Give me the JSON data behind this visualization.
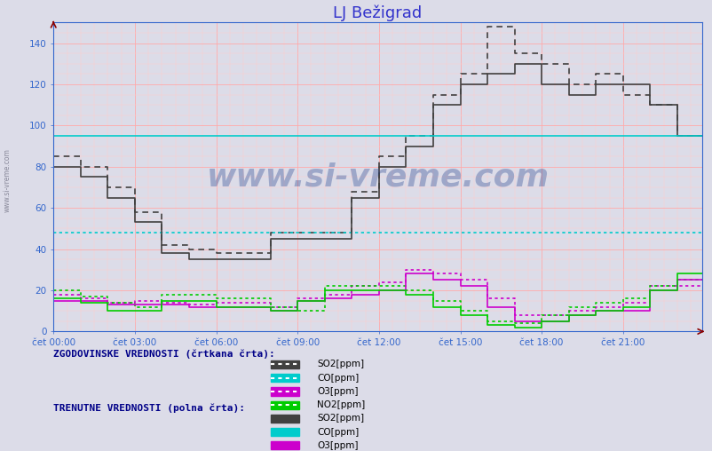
{
  "title": "LJ Bežigrad",
  "background_color": "#dcdce8",
  "plot_bg_color": "#dcdce8",
  "ylim": [
    0,
    150
  ],
  "yticks": [
    0,
    20,
    40,
    60,
    80,
    100,
    120,
    140
  ],
  "xtick_positions": [
    0,
    36,
    72,
    108,
    144,
    180,
    216,
    252
  ],
  "xtick_labels": [
    "čet 00:00",
    "čet 03:00",
    "čet 06:00",
    "čet 09:00",
    "čet 12:00",
    "čet 15:00",
    "čet 18:00",
    "čet 21:00"
  ],
  "colors": {
    "SO2": "#404040",
    "CO": "#00cccc",
    "O3": "#cc00cc",
    "NO2": "#00cc00"
  },
  "grid_color_major": "#ffaaaa",
  "grid_color_minor": "#ffcccc",
  "title_color": "#3333cc",
  "axis_color": "#3366cc",
  "label_text1": "ZGODOVINSKE VREDNOSTI (črtkana črta):",
  "label_text2": "TRENUTNE VREDNOSTI (polna črta):",
  "legend_items": [
    "SO2[ppm]",
    "CO[ppm]",
    "O3[ppm]",
    "NO2[ppm]"
  ],
  "n_points": 288,
  "SO2_solid": [
    80,
    80,
    80,
    80,
    80,
    80,
    80,
    80,
    80,
    80,
    80,
    80,
    75,
    75,
    75,
    75,
    75,
    75,
    75,
    75,
    75,
    75,
    75,
    75,
    65,
    65,
    65,
    65,
    65,
    65,
    65,
    65,
    65,
    65,
    65,
    65,
    53,
    53,
    53,
    53,
    53,
    53,
    53,
    53,
    53,
    53,
    53,
    53,
    38,
    38,
    38,
    38,
    38,
    38,
    38,
    38,
    38,
    38,
    38,
    38,
    35,
    35,
    35,
    35,
    35,
    35,
    35,
    35,
    35,
    35,
    35,
    35,
    35,
    35,
    35,
    35,
    35,
    35,
    35,
    35,
    35,
    35,
    35,
    35,
    35,
    35,
    35,
    35,
    35,
    35,
    35,
    35,
    35,
    35,
    35,
    35,
    45,
    45,
    45,
    45,
    45,
    45,
    45,
    45,
    45,
    45,
    45,
    45,
    45,
    45,
    45,
    45,
    45,
    45,
    45,
    45,
    45,
    45,
    45,
    45,
    45,
    45,
    45,
    45,
    45,
    45,
    45,
    45,
    45,
    45,
    45,
    45,
    65,
    65,
    65,
    65,
    65,
    65,
    65,
    65,
    65,
    65,
    65,
    65,
    80,
    80,
    80,
    80,
    80,
    80,
    80,
    80,
    80,
    80,
    80,
    80,
    90,
    90,
    90,
    90,
    90,
    90,
    90,
    90,
    90,
    90,
    90,
    90,
    110,
    110,
    110,
    110,
    110,
    110,
    110,
    110,
    110,
    110,
    110,
    110,
    120,
    120,
    120,
    120,
    120,
    120,
    120,
    120,
    120,
    120,
    120,
    120,
    125,
    125,
    125,
    125,
    125,
    125,
    125,
    125,
    125,
    125,
    125,
    125,
    130,
    130,
    130,
    130,
    130,
    130,
    130,
    130,
    130,
    130,
    130,
    130,
    120,
    120,
    120,
    120,
    120,
    120,
    120,
    120,
    120,
    120,
    120,
    120,
    115,
    115,
    115,
    115,
    115,
    115,
    115,
    115,
    115,
    115,
    115,
    115,
    120,
    120,
    120,
    120,
    120,
    120,
    120,
    120,
    120,
    120,
    120,
    120,
    120,
    120,
    120,
    120,
    120,
    120,
    120,
    120,
    120,
    120,
    120,
    120,
    110,
    110,
    110,
    110,
    110,
    110,
    110,
    110,
    110,
    110,
    110,
    110,
    95,
    95,
    95,
    95,
    95,
    95,
    95,
    95,
    95,
    95,
    95,
    95
  ],
  "SO2_dashed": [
    85,
    85,
    85,
    85,
    85,
    85,
    85,
    85,
    85,
    85,
    85,
    85,
    80,
    80,
    80,
    80,
    80,
    80,
    80,
    80,
    80,
    80,
    80,
    80,
    70,
    70,
    70,
    70,
    70,
    70,
    70,
    70,
    70,
    70,
    70,
    70,
    58,
    58,
    58,
    58,
    58,
    58,
    58,
    58,
    58,
    58,
    58,
    58,
    42,
    42,
    42,
    42,
    42,
    42,
    42,
    42,
    42,
    42,
    42,
    42,
    40,
    40,
    40,
    40,
    40,
    40,
    40,
    40,
    40,
    40,
    40,
    40,
    38,
    38,
    38,
    38,
    38,
    38,
    38,
    38,
    38,
    38,
    38,
    38,
    38,
    38,
    38,
    38,
    38,
    38,
    38,
    38,
    38,
    38,
    38,
    38,
    48,
    48,
    48,
    48,
    48,
    48,
    48,
    48,
    48,
    48,
    48,
    48,
    48,
    48,
    48,
    48,
    48,
    48,
    48,
    48,
    48,
    48,
    48,
    48,
    48,
    48,
    48,
    48,
    48,
    48,
    48,
    48,
    48,
    48,
    48,
    48,
    68,
    68,
    68,
    68,
    68,
    68,
    68,
    68,
    68,
    68,
    68,
    68,
    85,
    85,
    85,
    85,
    85,
    85,
    85,
    85,
    85,
    85,
    85,
    85,
    95,
    95,
    95,
    95,
    95,
    95,
    95,
    95,
    95,
    95,
    95,
    95,
    115,
    115,
    115,
    115,
    115,
    115,
    115,
    115,
    115,
    115,
    115,
    115,
    125,
    125,
    125,
    125,
    125,
    125,
    125,
    125,
    125,
    125,
    125,
    125,
    148,
    148,
    148,
    148,
    148,
    148,
    148,
    148,
    148,
    148,
    148,
    148,
    135,
    135,
    135,
    135,
    135,
    135,
    135,
    135,
    135,
    135,
    135,
    135,
    130,
    130,
    130,
    130,
    130,
    130,
    130,
    130,
    130,
    130,
    130,
    130,
    120,
    120,
    120,
    120,
    120,
    120,
    120,
    120,
    120,
    120,
    120,
    120,
    125,
    125,
    125,
    125,
    125,
    125,
    125,
    125,
    125,
    125,
    125,
    125,
    115,
    115,
    115,
    115,
    115,
    115,
    115,
    115,
    115,
    115,
    115,
    115,
    110,
    110,
    110,
    110,
    110,
    110,
    110,
    110,
    110,
    110,
    110,
    110,
    95,
    95,
    95,
    95,
    95,
    95,
    95,
    95,
    95,
    95,
    95,
    95
  ],
  "O3_solid": [
    15,
    15,
    15,
    15,
    15,
    15,
    15,
    15,
    15,
    15,
    15,
    15,
    15,
    15,
    15,
    15,
    15,
    15,
    15,
    15,
    15,
    15,
    15,
    15,
    13,
    13,
    13,
    13,
    13,
    13,
    13,
    13,
    13,
    13,
    13,
    13,
    13,
    13,
    13,
    13,
    13,
    13,
    13,
    13,
    13,
    13,
    13,
    13,
    13,
    13,
    13,
    13,
    13,
    13,
    13,
    13,
    13,
    13,
    13,
    13,
    12,
    12,
    12,
    12,
    12,
    12,
    12,
    12,
    12,
    12,
    12,
    12,
    12,
    12,
    12,
    12,
    12,
    12,
    12,
    12,
    12,
    12,
    12,
    12,
    12,
    12,
    12,
    12,
    12,
    12,
    12,
    12,
    12,
    12,
    12,
    12,
    10,
    10,
    10,
    10,
    10,
    10,
    10,
    10,
    10,
    10,
    10,
    10,
    15,
    15,
    15,
    15,
    15,
    15,
    15,
    15,
    15,
    15,
    15,
    15,
    16,
    16,
    16,
    16,
    16,
    16,
    16,
    16,
    16,
    16,
    16,
    16,
    18,
    18,
    18,
    18,
    18,
    18,
    18,
    18,
    18,
    18,
    18,
    18,
    20,
    20,
    20,
    20,
    20,
    20,
    20,
    20,
    20,
    20,
    20,
    20,
    28,
    28,
    28,
    28,
    28,
    28,
    28,
    28,
    28,
    28,
    28,
    28,
    25,
    25,
    25,
    25,
    25,
    25,
    25,
    25,
    25,
    25,
    25,
    25,
    22,
    22,
    22,
    22,
    22,
    22,
    22,
    22,
    22,
    22,
    22,
    22,
    12,
    12,
    12,
    12,
    12,
    12,
    12,
    12,
    12,
    12,
    12,
    12,
    5,
    5,
    5,
    5,
    5,
    5,
    5,
    5,
    5,
    5,
    5,
    5,
    5,
    5,
    5,
    5,
    5,
    5,
    5,
    5,
    5,
    5,
    5,
    5,
    8,
    8,
    8,
    8,
    8,
    8,
    8,
    8,
    8,
    8,
    8,
    8,
    10,
    10,
    10,
    10,
    10,
    10,
    10,
    10,
    10,
    10,
    10,
    10,
    10,
    10,
    10,
    10,
    10,
    10,
    10,
    10,
    10,
    10,
    10,
    10,
    20,
    20,
    20,
    20,
    20,
    20,
    20,
    20,
    20,
    20,
    20,
    20,
    25,
    25,
    25,
    25,
    25,
    25,
    25,
    25,
    25,
    25,
    25,
    25
  ],
  "O3_dashed": [
    18,
    18,
    18,
    18,
    18,
    18,
    18,
    18,
    18,
    18,
    18,
    18,
    16,
    16,
    16,
    16,
    16,
    16,
    16,
    16,
    16,
    16,
    16,
    16,
    14,
    14,
    14,
    14,
    14,
    14,
    14,
    14,
    14,
    14,
    14,
    14,
    15,
    15,
    15,
    15,
    15,
    15,
    15,
    15,
    15,
    15,
    15,
    15,
    14,
    14,
    14,
    14,
    14,
    14,
    14,
    14,
    14,
    14,
    14,
    14,
    13,
    13,
    13,
    13,
    13,
    13,
    13,
    13,
    13,
    13,
    13,
    13,
    14,
    14,
    14,
    14,
    14,
    14,
    14,
    14,
    14,
    14,
    14,
    14,
    14,
    14,
    14,
    14,
    14,
    14,
    14,
    14,
    14,
    14,
    14,
    14,
    12,
    12,
    12,
    12,
    12,
    12,
    12,
    12,
    12,
    12,
    12,
    12,
    16,
    16,
    16,
    16,
    16,
    16,
    16,
    16,
    16,
    16,
    16,
    16,
    18,
    18,
    18,
    18,
    18,
    18,
    18,
    18,
    18,
    18,
    18,
    18,
    22,
    22,
    22,
    22,
    22,
    22,
    22,
    22,
    22,
    22,
    22,
    22,
    24,
    24,
    24,
    24,
    24,
    24,
    24,
    24,
    24,
    24,
    24,
    24,
    30,
    30,
    30,
    30,
    30,
    30,
    30,
    30,
    30,
    30,
    30,
    30,
    28,
    28,
    28,
    28,
    28,
    28,
    28,
    28,
    28,
    28,
    28,
    28,
    25,
    25,
    25,
    25,
    25,
    25,
    25,
    25,
    25,
    25,
    25,
    25,
    16,
    16,
    16,
    16,
    16,
    16,
    16,
    16,
    16,
    16,
    16,
    16,
    8,
    8,
    8,
    8,
    8,
    8,
    8,
    8,
    8,
    8,
    8,
    8,
    8,
    8,
    8,
    8,
    8,
    8,
    8,
    8,
    8,
    8,
    8,
    8,
    10,
    10,
    10,
    10,
    10,
    10,
    10,
    10,
    10,
    10,
    10,
    10,
    12,
    12,
    12,
    12,
    12,
    12,
    12,
    12,
    12,
    12,
    12,
    12,
    14,
    14,
    14,
    14,
    14,
    14,
    14,
    14,
    14,
    14,
    14,
    14,
    22,
    22,
    22,
    22,
    22,
    22,
    22,
    22,
    22,
    22,
    22,
    22,
    22,
    22,
    22,
    22,
    22,
    22,
    22,
    22,
    22,
    22,
    22,
    22
  ],
  "NO2_solid": [
    16,
    16,
    16,
    16,
    16,
    16,
    16,
    16,
    16,
    16,
    16,
    16,
    14,
    14,
    14,
    14,
    14,
    14,
    14,
    14,
    14,
    14,
    14,
    14,
    10,
    10,
    10,
    10,
    10,
    10,
    10,
    10,
    10,
    10,
    10,
    10,
    10,
    10,
    10,
    10,
    10,
    10,
    10,
    10,
    10,
    10,
    10,
    10,
    15,
    15,
    15,
    15,
    15,
    15,
    15,
    15,
    15,
    15,
    15,
    15,
    15,
    15,
    15,
    15,
    15,
    15,
    15,
    15,
    15,
    15,
    15,
    15,
    12,
    12,
    12,
    12,
    12,
    12,
    12,
    12,
    12,
    12,
    12,
    12,
    12,
    12,
    12,
    12,
    12,
    12,
    12,
    12,
    12,
    12,
    12,
    12,
    10,
    10,
    10,
    10,
    10,
    10,
    10,
    10,
    10,
    10,
    10,
    10,
    15,
    15,
    15,
    15,
    15,
    15,
    15,
    15,
    15,
    15,
    15,
    15,
    20,
    20,
    20,
    20,
    20,
    20,
    20,
    20,
    20,
    20,
    20,
    20,
    20,
    20,
    20,
    20,
    20,
    20,
    20,
    20,
    20,
    20,
    20,
    20,
    20,
    20,
    20,
    20,
    20,
    20,
    20,
    20,
    20,
    20,
    20,
    20,
    18,
    18,
    18,
    18,
    18,
    18,
    18,
    18,
    18,
    18,
    18,
    18,
    12,
    12,
    12,
    12,
    12,
    12,
    12,
    12,
    12,
    12,
    12,
    12,
    8,
    8,
    8,
    8,
    8,
    8,
    8,
    8,
    8,
    8,
    8,
    8,
    3,
    3,
    3,
    3,
    3,
    3,
    3,
    3,
    3,
    3,
    3,
    3,
    2,
    2,
    2,
    2,
    2,
    2,
    2,
    2,
    2,
    2,
    2,
    2,
    5,
    5,
    5,
    5,
    5,
    5,
    5,
    5,
    5,
    5,
    5,
    5,
    8,
    8,
    8,
    8,
    8,
    8,
    8,
    8,
    8,
    8,
    8,
    8,
    10,
    10,
    10,
    10,
    10,
    10,
    10,
    10,
    10,
    10,
    10,
    10,
    12,
    12,
    12,
    12,
    12,
    12,
    12,
    12,
    12,
    12,
    12,
    12,
    20,
    20,
    20,
    20,
    20,
    20,
    20,
    20,
    20,
    20,
    20,
    20,
    28,
    28,
    28,
    28,
    28,
    28,
    28,
    28,
    28,
    28,
    28,
    28
  ],
  "NO2_dashed": [
    20,
    20,
    20,
    20,
    20,
    20,
    20,
    20,
    20,
    20,
    20,
    20,
    17,
    17,
    17,
    17,
    17,
    17,
    17,
    17,
    17,
    17,
    17,
    17,
    14,
    14,
    14,
    14,
    14,
    14,
    14,
    14,
    14,
    14,
    14,
    14,
    12,
    12,
    12,
    12,
    12,
    12,
    12,
    12,
    12,
    12,
    12,
    12,
    18,
    18,
    18,
    18,
    18,
    18,
    18,
    18,
    18,
    18,
    18,
    18,
    18,
    18,
    18,
    18,
    18,
    18,
    18,
    18,
    18,
    18,
    18,
    18,
    16,
    16,
    16,
    16,
    16,
    16,
    16,
    16,
    16,
    16,
    16,
    16,
    16,
    16,
    16,
    16,
    16,
    16,
    16,
    16,
    16,
    16,
    16,
    16,
    12,
    12,
    12,
    12,
    12,
    12,
    12,
    12,
    12,
    12,
    12,
    12,
    10,
    10,
    10,
    10,
    10,
    10,
    10,
    10,
    10,
    10,
    10,
    10,
    22,
    22,
    22,
    22,
    22,
    22,
    22,
    22,
    22,
    22,
    22,
    22,
    22,
    22,
    22,
    22,
    22,
    22,
    22,
    22,
    22,
    22,
    22,
    22,
    22,
    22,
    22,
    22,
    22,
    22,
    22,
    22,
    22,
    22,
    22,
    22,
    20,
    20,
    20,
    20,
    20,
    20,
    20,
    20,
    20,
    20,
    20,
    20,
    15,
    15,
    15,
    15,
    15,
    15,
    15,
    15,
    15,
    15,
    15,
    15,
    10,
    10,
    10,
    10,
    10,
    10,
    10,
    10,
    10,
    10,
    10,
    10,
    5,
    5,
    5,
    5,
    5,
    5,
    5,
    5,
    5,
    5,
    5,
    5,
    4,
    4,
    4,
    4,
    4,
    4,
    4,
    4,
    4,
    4,
    4,
    4,
    8,
    8,
    8,
    8,
    8,
    8,
    8,
    8,
    8,
    8,
    8,
    8,
    12,
    12,
    12,
    12,
    12,
    12,
    12,
    12,
    12,
    12,
    12,
    12,
    14,
    14,
    14,
    14,
    14,
    14,
    14,
    14,
    14,
    14,
    14,
    14,
    16,
    16,
    16,
    16,
    16,
    16,
    16,
    16,
    16,
    16,
    16,
    16,
    22,
    22,
    22,
    22,
    22,
    22,
    22,
    22,
    22,
    22,
    22,
    22,
    25,
    25,
    25,
    25,
    25,
    25,
    25,
    25,
    25,
    25,
    25,
    25
  ],
  "CO_solid_val": 95,
  "CO_dashed_val": 48,
  "watermark": "www.si-vreme.com"
}
